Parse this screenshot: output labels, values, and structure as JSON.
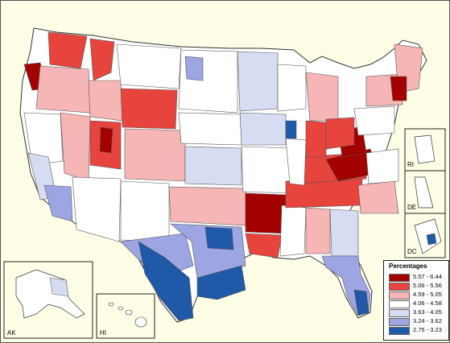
{
  "legend": {
    "title": "Percentages",
    "bins": [
      {
        "label": "5.57 - 6.44",
        "color": "#a30000"
      },
      {
        "label": "5.06 - 5.56",
        "color": "#e8443e"
      },
      {
        "label": "4.59 - 5.05",
        "color": "#f6b6b6"
      },
      {
        "label": "4.06 - 4.58",
        "color": "#ffffff"
      },
      {
        "label": "3.63 - 4.05",
        "color": "#d6dcf2"
      },
      {
        "label": "3.24 - 3.62",
        "color": "#9ea5e3"
      },
      {
        "label": "2.75 - 3.23",
        "color": "#1f59a8"
      }
    ]
  },
  "insets": {
    "ak": "AK",
    "hi": "HI",
    "ri": "RI",
    "de": "DE",
    "dc": "DC"
  },
  "colors": {
    "background": "#fefee6",
    "border": "#333333"
  }
}
